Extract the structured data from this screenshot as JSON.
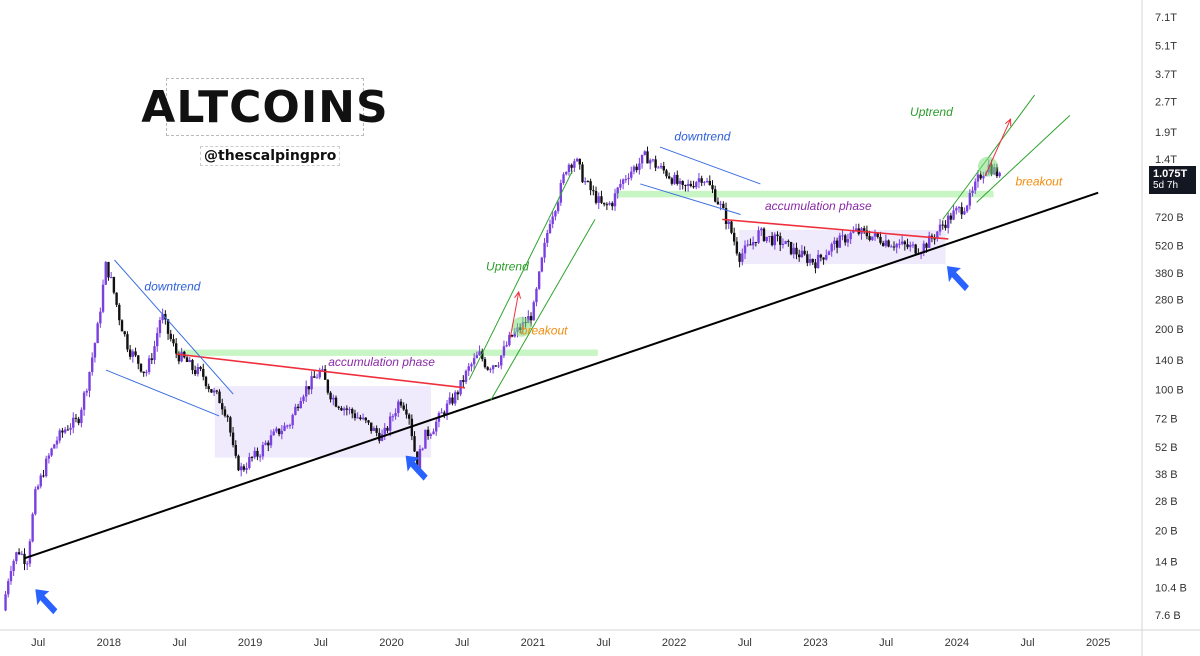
{
  "title": "ALTCOINS",
  "handle": "@thescalpingpro",
  "price_badge": {
    "price": "1.075T",
    "countdown": "5d 7h"
  },
  "colors": {
    "up": "#7a3fe0",
    "down": "#111111",
    "trendline": "#000000",
    "resistance": "#ef2f3c",
    "zone_green": "#b9f2b4",
    "zone_purple": "#ebe5fb",
    "arrow": "#2962ff",
    "channel_green": "#2fa32f",
    "channel_blue": "#3b6fe0",
    "label_blue": "#2b5fd9",
    "label_green": "#2a9d2a",
    "label_purple": "#8a2aa8",
    "label_orange": "#f28c0f"
  },
  "chart_data": {
    "type": "candlestick",
    "title": "ALTCOINS",
    "scale": "log",
    "y_tick_labels": [
      "7.1T",
      "5.1T",
      "3.7T",
      "2.7T",
      "1.9T",
      "1.4T",
      "1.075T",
      "720 B",
      "520 B",
      "380 B",
      "280 B",
      "200 B",
      "140 B",
      "100 B",
      "72 B",
      "52 B",
      "38 B",
      "28 B",
      "20 B",
      "14 B",
      "10.4 B",
      "7.6 B"
    ],
    "y_tick_values": [
      7100,
      5100,
      3700,
      2700,
      1900,
      1400,
      1075,
      720,
      520,
      380,
      280,
      200,
      140,
      100,
      72,
      52,
      38,
      28,
      20,
      14,
      10.4,
      7.6
    ],
    "x_tick_labels": [
      "Jul",
      "2018",
      "Jul",
      "2019",
      "Jul",
      "2020",
      "Jul",
      "2021",
      "Jul",
      "2022",
      "Jul",
      "2023",
      "Jul",
      "2024",
      "Jul",
      "2025"
    ],
    "x_tick_values": [
      2017.5,
      2018.0,
      2018.5,
      2019.0,
      2019.5,
      2020.0,
      2020.5,
      2021.0,
      2021.5,
      2022.0,
      2022.5,
      2023.0,
      2023.5,
      2024.0,
      2024.5,
      2025.0
    ],
    "x_range": [
      2017.23,
      2025.31
    ],
    "y_range_billions": [
      6.4,
      8600
    ],
    "price_path": [
      [
        2017.25,
        8
      ],
      [
        2017.3,
        13
      ],
      [
        2017.36,
        16
      ],
      [
        2017.42,
        14
      ],
      [
        2017.48,
        30
      ],
      [
        2017.55,
        42
      ],
      [
        2017.62,
        55
      ],
      [
        2017.7,
        65
      ],
      [
        2017.78,
        70
      ],
      [
        2017.85,
        110
      ],
      [
        2017.92,
        200
      ],
      [
        2017.98,
        420
      ],
      [
        2018.02,
        340
      ],
      [
        2018.08,
        220
      ],
      [
        2018.14,
        160
      ],
      [
        2018.2,
        140
      ],
      [
        2018.26,
        120
      ],
      [
        2018.32,
        160
      ],
      [
        2018.37,
        240
      ],
      [
        2018.42,
        190
      ],
      [
        2018.48,
        150
      ],
      [
        2018.54,
        140
      ],
      [
        2018.6,
        125
      ],
      [
        2018.66,
        120
      ],
      [
        2018.72,
        100
      ],
      [
        2018.78,
        90
      ],
      [
        2018.84,
        75
      ],
      [
        2018.89,
        45
      ],
      [
        2018.94,
        40
      ],
      [
        2019.0,
        45
      ],
      [
        2019.06,
        48
      ],
      [
        2019.12,
        55
      ],
      [
        2019.2,
        62
      ],
      [
        2019.28,
        68
      ],
      [
        2019.36,
        95
      ],
      [
        2019.44,
        110
      ],
      [
        2019.5,
        125
      ],
      [
        2019.55,
        100
      ],
      [
        2019.6,
        88
      ],
      [
        2019.66,
        82
      ],
      [
        2019.74,
        75
      ],
      [
        2019.82,
        68
      ],
      [
        2019.88,
        62
      ],
      [
        2019.94,
        58
      ],
      [
        2020.0,
        72
      ],
      [
        2020.06,
        90
      ],
      [
        2020.12,
        78
      ],
      [
        2020.18,
        42
      ],
      [
        2020.23,
        58
      ],
      [
        2020.3,
        66
      ],
      [
        2020.38,
        80
      ],
      [
        2020.46,
        95
      ],
      [
        2020.54,
        125
      ],
      [
        2020.62,
        150
      ],
      [
        2020.68,
        130
      ],
      [
        2020.76,
        140
      ],
      [
        2020.84,
        180
      ],
      [
        2020.92,
        205
      ],
      [
        2021.0,
        240
      ],
      [
        2021.06,
        420
      ],
      [
        2021.12,
        700
      ],
      [
        2021.18,
        900
      ],
      [
        2021.24,
        1300
      ],
      [
        2021.3,
        1400
      ],
      [
        2021.36,
        1100
      ],
      [
        2021.42,
        950
      ],
      [
        2021.5,
        800
      ],
      [
        2021.56,
        850
      ],
      [
        2021.62,
        1050
      ],
      [
        2021.68,
        1200
      ],
      [
        2021.74,
        1300
      ],
      [
        2021.8,
        1450
      ],
      [
        2021.88,
        1280
      ],
      [
        2021.94,
        1200
      ],
      [
        2022.0,
        1100
      ],
      [
        2022.06,
        980
      ],
      [
        2022.12,
        1050
      ],
      [
        2022.2,
        1150
      ],
      [
        2022.28,
        950
      ],
      [
        2022.34,
        780
      ],
      [
        2022.4,
        620
      ],
      [
        2022.46,
        460
      ],
      [
        2022.54,
        520
      ],
      [
        2022.6,
        600
      ],
      [
        2022.68,
        560
      ],
      [
        2022.76,
        540
      ],
      [
        2022.84,
        490
      ],
      [
        2022.92,
        455
      ],
      [
        2023.0,
        430
      ],
      [
        2023.06,
        470
      ],
      [
        2023.12,
        520
      ],
      [
        2023.2,
        560
      ],
      [
        2023.28,
        610
      ],
      [
        2023.36,
        590
      ],
      [
        2023.46,
        560
      ],
      [
        2023.56,
        530
      ],
      [
        2023.66,
        510
      ],
      [
        2023.74,
        500
      ],
      [
        2023.82,
        560
      ],
      [
        2023.9,
        660
      ],
      [
        2023.98,
        750
      ],
      [
        2024.04,
        800
      ],
      [
        2024.1,
        900
      ],
      [
        2024.16,
        1150
      ],
      [
        2024.22,
        1300
      ],
      [
        2024.28,
        1200
      ],
      [
        2024.32,
        1075
      ]
    ],
    "overlays": {
      "support_trendline": [
        [
          2017.4,
          14.5
        ],
        [
          2025.0,
          950
        ]
      ],
      "resistance_2019_2020": [
        [
          2018.48,
          150
        ],
        [
          2020.52,
          102
        ]
      ],
      "resistance_2022_2023": [
        [
          2022.34,
          700
        ],
        [
          2023.94,
          560
        ]
      ],
      "green_zone_2020": {
        "x": [
          2018.48,
          2021.46
        ],
        "y": [
          147,
          158
        ]
      },
      "purple_zone_2019": {
        "x": [
          2018.75,
          2020.28
        ],
        "y": [
          46,
          104
        ]
      },
      "green_zone_2022": {
        "x": [
          2021.58,
          2024.26
        ],
        "y": [
          900,
          970
        ]
      },
      "purple_zone_2023": {
        "x": [
          2022.46,
          2023.92
        ],
        "y": [
          420,
          620
        ]
      },
      "downtrend_channel_2018": [
        [
          [
            2018.04,
            440
          ],
          [
            2018.88,
            95
          ]
        ],
        [
          [
            2017.98,
            125
          ],
          [
            2018.78,
            74
          ]
        ]
      ],
      "downtrend_channel_2022": [
        [
          [
            2021.9,
            1600
          ],
          [
            2022.61,
            1050
          ]
        ],
        [
          [
            2021.76,
            1050
          ],
          [
            2022.47,
            740
          ]
        ]
      ],
      "uptrend_channel_2020": [
        [
          [
            2020.55,
            112
          ],
          [
            2021.28,
            1220
          ]
        ],
        [
          [
            2020.7,
            88
          ],
          [
            2021.44,
            700
          ]
        ]
      ],
      "uptrend_channel_2024": [
        [
          [
            2023.9,
            700
          ],
          [
            2024.55,
            2900
          ]
        ],
        [
          [
            2024.14,
            850
          ],
          [
            2024.8,
            2300
          ]
        ]
      ],
      "breakout_arrows": [
        [
          [
            2020.84,
            180
          ],
          [
            2020.9,
            305
          ]
        ],
        [
          [
            2024.2,
            1150
          ],
          [
            2024.38,
            2200
          ]
        ]
      ],
      "breakout_circles": [
        [
          2020.92,
          205
        ],
        [
          2024.22,
          1280
        ]
      ],
      "blue_arrows": [
        [
          2017.48,
          10.2
        ],
        [
          2020.1,
          47
        ],
        [
          2023.93,
          410
        ]
      ]
    },
    "annotations": [
      {
        "text": "downtrend",
        "x": 2018.45,
        "y": 310,
        "color": "label_blue"
      },
      {
        "text": "accumulation phase",
        "x": 2019.93,
        "y": 131,
        "color": "label_purple"
      },
      {
        "text": "Uptrend",
        "x": 2020.82,
        "y": 390,
        "color": "label_green"
      },
      {
        "text": "breakout",
        "x": 2021.08,
        "y": 188,
        "color": "label_orange"
      },
      {
        "text": "downtrend",
        "x": 2022.2,
        "y": 1730,
        "color": "label_blue"
      },
      {
        "text": "accumulation phase",
        "x": 2023.02,
        "y": 780,
        "color": "label_purple"
      },
      {
        "text": "Uptrend",
        "x": 2023.82,
        "y": 2280,
        "color": "label_green"
      },
      {
        "text": "breakout",
        "x": 2024.58,
        "y": 1030,
        "color": "label_orange"
      }
    ]
  }
}
